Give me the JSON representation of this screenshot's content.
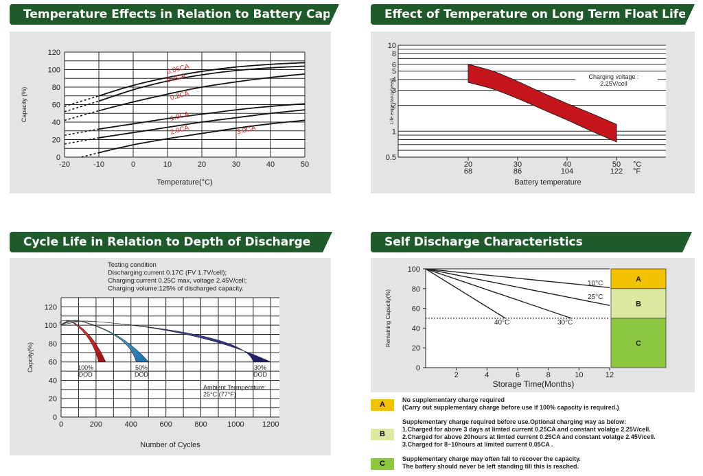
{
  "panels": {
    "capacity": {
      "title": "Temperature Effects in Relation to Battery Capacity",
      "xlabel": "Temperature(°C)",
      "ylabel": "Capacity (%)",
      "xticks": [
        "-20",
        "-10",
        "0",
        "10",
        "20",
        "30",
        "40",
        "50"
      ],
      "yticks": [
        "0",
        "20",
        "40",
        "60",
        "80",
        "100",
        "120"
      ],
      "curve_labels": [
        "0.05CA",
        "0.1CA",
        "0.2CA",
        "1.0CA",
        "2.0CA",
        "3.0CA"
      ]
    },
    "float": {
      "title": "Effect of Temperature on Long Term Float Life",
      "xlabel": "Battery temperature",
      "ylabel": "Life expectancy(year)",
      "yticks": [
        "0.5",
        "1",
        "2",
        "3",
        "4",
        "5",
        "6",
        "8",
        "10"
      ],
      "xticks_c": [
        "20",
        "30",
        "40",
        "50"
      ],
      "xticks_f": [
        "68",
        "86",
        "104",
        "122"
      ],
      "unit_c": "°C",
      "unit_f": "°F",
      "note_line1": "Charging voltage :",
      "note_line2": "2.25V/cell"
    },
    "cycle": {
      "title": "Cycle Life in Relation to Depth of Discharge",
      "xlabel": "Number of Cycles",
      "ylabel": "Capcity(%)",
      "xticks": [
        "0",
        "200",
        "400",
        "600",
        "800",
        "1000",
        "1200"
      ],
      "yticks": [
        "0",
        "20",
        "40",
        "60",
        "80",
        "100",
        "120"
      ],
      "test_lines": [
        "Testing condition",
        "Discharging:current 0.17C (FV 1.7V/cell);",
        "Charging:current 0.25C max, voltage 2.45V/cell;",
        "Charging volume:125% of discharged capacity."
      ],
      "dod_labels": [
        [
          "100%",
          "DOD"
        ],
        [
          "50%",
          "DOD"
        ],
        [
          "30%",
          "DOD"
        ]
      ],
      "ambient_line1": "Ambient Termperature:",
      "ambient_line2": "25°C (77°F)"
    },
    "self": {
      "title": "Self Discharge Characteristics",
      "xlabel": "Storage Time(Months)",
      "ylabel": "Remaining Capacity(%)",
      "xticks": [
        "2",
        "4",
        "6",
        "8",
        "10",
        "12"
      ],
      "yticks": [
        "0",
        "20",
        "40",
        "60",
        "80",
        "100"
      ],
      "temp_labels": [
        "10°C",
        "25°C",
        "40°C",
        "30°C"
      ],
      "zones": [
        "A",
        "B",
        "C"
      ],
      "zone_colors": {
        "A": "#f2c200",
        "B": "#dbeaa0",
        "C": "#8dc63f"
      }
    }
  },
  "legend": [
    {
      "key": "A",
      "text": "No supplementary charge required\n(Carry out supplementary charge before use if 100% capacity is required.)"
    },
    {
      "key": "B",
      "text": "Supplementary charge required before use.Optional charging way as below:\n1.Charged for above 3 days at limted current 0.25CA and constant volatge 2.25V/cell.\n2.Charged for above 20hours at limted current 0.25CA and constant volatge 2.45V/cell.\n3.Charged for 8~10hours at limited current 0.05CA ."
    },
    {
      "key": "C",
      "text": "Supplementary charge may often fail to recover the capacity.\nThe battery should never be  left standing till this is reached."
    }
  ],
  "chart_data": [
    {
      "type": "line",
      "title": "Temperature Effects in Relation to Battery Capacity",
      "xlabel": "Temperature(°C)",
      "ylabel": "Capacity (%)",
      "xlim": [
        -20,
        50
      ],
      "ylim": [
        0,
        120
      ],
      "grid": true,
      "series": [
        {
          "name": "0.05CA",
          "x": [
            -20,
            -10,
            0,
            10,
            20,
            30,
            40,
            50
          ],
          "y": [
            58,
            70,
            82,
            91,
            98,
            103,
            106,
            108
          ]
        },
        {
          "name": "0.1CA",
          "x": [
            -20,
            -10,
            0,
            10,
            20,
            30,
            40,
            50
          ],
          "y": [
            52,
            64,
            77,
            87,
            94,
            99,
            102,
            104
          ]
        },
        {
          "name": "0.2CA",
          "x": [
            -20,
            -10,
            0,
            10,
            20,
            30,
            40,
            50
          ],
          "y": [
            42,
            53,
            63,
            72,
            80,
            86,
            91,
            95
          ]
        },
        {
          "name": "1.0CA",
          "x": [
            -20,
            -10,
            0,
            10,
            20,
            30,
            40,
            50
          ],
          "y": [
            25,
            32,
            38,
            44,
            49,
            54,
            58,
            61
          ]
        },
        {
          "name": "2.0CA",
          "x": [
            -20,
            -10,
            0,
            10,
            20,
            30,
            40,
            50
          ],
          "y": [
            15,
            22,
            28,
            34,
            40,
            45,
            50,
            54
          ]
        },
        {
          "name": "3.0CA",
          "x": [
            -15,
            -10,
            0,
            10,
            20,
            30,
            40,
            50
          ],
          "y": [
            0,
            5,
            14,
            21,
            27,
            33,
            38,
            42
          ]
        }
      ]
    },
    {
      "type": "area",
      "title": "Effect of Temperature on Long Term Float Life",
      "xlabel": "Battery temperature",
      "ylabel": "Life expectancy(year)",
      "xlim": [
        20,
        50
      ],
      "ylim": [
        0.5,
        10
      ],
      "yscale": "log",
      "series": [
        {
          "name": "upper",
          "x": [
            20,
            25,
            30,
            35,
            40,
            45,
            50
          ],
          "y": [
            6,
            5,
            3.8,
            2.8,
            2.1,
            1.6,
            1.2
          ]
        },
        {
          "name": "lower",
          "x": [
            20,
            25,
            30,
            35,
            40,
            45,
            50
          ],
          "y": [
            3.7,
            3.1,
            2.4,
            1.8,
            1.35,
            1.0,
            0.75
          ]
        }
      ]
    },
    {
      "type": "area",
      "title": "Cycle Life in Relation to Depth of Discharge",
      "xlabel": "Number of Cycles",
      "ylabel": "Capcity(%)",
      "xlim": [
        0,
        1250
      ],
      "ylim": [
        0,
        130
      ],
      "series": [
        {
          "name": "100% DOD",
          "x": [
            0,
            50,
            100,
            150,
            200,
            250
          ],
          "y": [
            100,
            105,
            100,
            90,
            75,
            60
          ]
        },
        {
          "name": "50% DOD",
          "x": [
            0,
            100,
            200,
            300,
            400,
            500
          ],
          "y": [
            100,
            105,
            104,
            95,
            78,
            60
          ]
        },
        {
          "name": "30% DOD",
          "x": [
            0,
            200,
            400,
            600,
            800,
            1000,
            1200
          ],
          "y": [
            100,
            105,
            104,
            98,
            88,
            76,
            60
          ]
        }
      ]
    },
    {
      "type": "line",
      "title": "Self Discharge Characteristics",
      "xlabel": "Storage Time(Months)",
      "ylabel": "Remaining Capacity(%)",
      "xlim": [
        0,
        12
      ],
      "ylim": [
        0,
        100
      ],
      "series": [
        {
          "name": "10°C",
          "x": [
            0,
            12
          ],
          "y": [
            100,
            81
          ]
        },
        {
          "name": "25°C",
          "x": [
            0,
            12
          ],
          "y": [
            100,
            63
          ]
        },
        {
          "name": "30°C",
          "x": [
            0,
            9.5
          ],
          "y": [
            100,
            50
          ]
        },
        {
          "name": "40°C",
          "x": [
            0,
            5.2
          ],
          "y": [
            100,
            50
          ]
        }
      ]
    }
  ]
}
